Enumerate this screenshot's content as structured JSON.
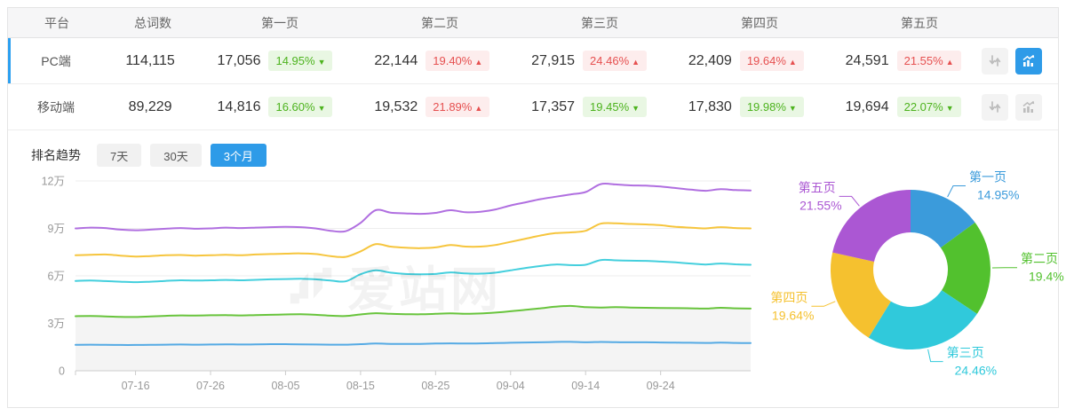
{
  "table": {
    "headers": {
      "platform": "平台",
      "total": "总词数",
      "pages": [
        "第一页",
        "第二页",
        "第三页",
        "第四页",
        "第五页"
      ]
    },
    "rows": [
      {
        "platform": "PC端",
        "total": "114,115",
        "selected": true,
        "chart_active": true,
        "pages": [
          {
            "count": "17,056",
            "pct": "14.95%",
            "trend": "down"
          },
          {
            "count": "22,144",
            "pct": "19.40%",
            "trend": "up"
          },
          {
            "count": "27,915",
            "pct": "24.46%",
            "trend": "up"
          },
          {
            "count": "22,409",
            "pct": "19.64%",
            "trend": "up"
          },
          {
            "count": "24,591",
            "pct": "21.55%",
            "trend": "up"
          }
        ]
      },
      {
        "platform": "移动端",
        "total": "89,229",
        "selected": false,
        "chart_active": false,
        "pages": [
          {
            "count": "14,816",
            "pct": "16.60%",
            "trend": "down"
          },
          {
            "count": "19,532",
            "pct": "21.89%",
            "trend": "up"
          },
          {
            "count": "17,357",
            "pct": "19.45%",
            "trend": "down"
          },
          {
            "count": "17,830",
            "pct": "19.98%",
            "trend": "down"
          },
          {
            "count": "19,694",
            "pct": "22.07%",
            "trend": "down"
          }
        ]
      }
    ]
  },
  "trend_section": {
    "title": "排名趋势",
    "tabs": [
      {
        "label": "7天",
        "active": false
      },
      {
        "label": "30天",
        "active": false
      },
      {
        "label": "3个月",
        "active": true
      }
    ]
  },
  "watermark": "爱站网",
  "colors": {
    "accent_blue": "#2e9be8",
    "row_accent": "#2b9ff0",
    "badge_up_red": "#e65050",
    "badge_down_green": "#4db31e"
  },
  "chart_data": [
    {
      "type": "line",
      "title": "排名趋势（3个月）",
      "unit": "万",
      "ylim": [
        0,
        12
      ],
      "grid": true,
      "legend": "none",
      "y_ticks": [
        {
          "v": 0,
          "label": "0"
        },
        {
          "v": 3,
          "label": "3万"
        },
        {
          "v": 6,
          "label": "6万"
        },
        {
          "v": 9,
          "label": "9万"
        },
        {
          "v": 12,
          "label": "12万"
        }
      ],
      "x_step_days": 2,
      "x_max_day": 90,
      "x_ticks": [
        {
          "day": 8,
          "label": "07-16"
        },
        {
          "day": 18,
          "label": "07-26"
        },
        {
          "day": 28,
          "label": "08-05"
        },
        {
          "day": 38,
          "label": "08-15"
        },
        {
          "day": 48,
          "label": "08-25"
        },
        {
          "day": 58,
          "label": "09-04"
        },
        {
          "day": 68,
          "label": "09-14"
        },
        {
          "day": 78,
          "label": "09-24"
        }
      ],
      "series": [
        {
          "name": "blue-line",
          "color": "#55aae4",
          "area": null,
          "values": [
            1.64,
            1.65,
            1.64,
            1.63,
            1.63,
            1.64,
            1.65,
            1.66,
            1.65,
            1.66,
            1.67,
            1.66,
            1.67,
            1.68,
            1.68,
            1.67,
            1.66,
            1.65,
            1.65,
            1.68,
            1.72,
            1.7,
            1.7,
            1.7,
            1.72,
            1.73,
            1.72,
            1.73,
            1.75,
            1.77,
            1.79,
            1.8,
            1.82,
            1.83,
            1.8,
            1.82,
            1.81,
            1.8,
            1.8,
            1.79,
            1.78,
            1.77,
            1.76,
            1.78,
            1.76,
            1.75
          ]
        },
        {
          "name": "green-line",
          "color": "#68c43c",
          "area": "#f4f4f4",
          "values": [
            3.45,
            3.46,
            3.44,
            3.41,
            3.4,
            3.43,
            3.47,
            3.5,
            3.49,
            3.51,
            3.52,
            3.5,
            3.52,
            3.54,
            3.56,
            3.57,
            3.54,
            3.48,
            3.46,
            3.56,
            3.64,
            3.6,
            3.58,
            3.57,
            3.6,
            3.63,
            3.6,
            3.62,
            3.68,
            3.76,
            3.85,
            3.95,
            4.05,
            4.1,
            4.02,
            4.0,
            4.02,
            4.0,
            3.98,
            3.97,
            3.96,
            3.95,
            3.93,
            3.98,
            3.95,
            3.93
          ]
        },
        {
          "name": "cyan-line",
          "color": "#44cfdd",
          "area": null,
          "values": [
            5.68,
            5.7,
            5.67,
            5.63,
            5.6,
            5.63,
            5.68,
            5.72,
            5.7,
            5.72,
            5.74,
            5.72,
            5.75,
            5.78,
            5.8,
            5.82,
            5.78,
            5.7,
            5.65,
            6.1,
            6.35,
            6.2,
            6.12,
            6.1,
            6.12,
            6.22,
            6.15,
            6.14,
            6.2,
            6.35,
            6.5,
            6.62,
            6.72,
            6.68,
            6.7,
            7.0,
            6.98,
            6.96,
            6.95,
            6.9,
            6.85,
            6.78,
            6.72,
            6.78,
            6.73,
            6.7
          ]
        },
        {
          "name": "yellow-line",
          "color": "#f6c53d",
          "area": null,
          "values": [
            7.3,
            7.33,
            7.35,
            7.28,
            7.22,
            7.25,
            7.3,
            7.32,
            7.28,
            7.3,
            7.33,
            7.3,
            7.35,
            7.38,
            7.4,
            7.42,
            7.38,
            7.25,
            7.2,
            7.55,
            8.0,
            7.85,
            7.78,
            7.75,
            7.8,
            7.95,
            7.85,
            7.85,
            7.95,
            8.15,
            8.35,
            8.55,
            8.7,
            8.75,
            8.85,
            9.3,
            9.32,
            9.28,
            9.25,
            9.2,
            9.1,
            9.05,
            9.0,
            9.08,
            9.02,
            9.0
          ]
        },
        {
          "name": "purple-line",
          "color": "#b06fe0",
          "area": null,
          "values": [
            9.0,
            9.05,
            9.02,
            8.92,
            8.88,
            8.92,
            8.98,
            9.02,
            8.98,
            9.0,
            9.05,
            9.02,
            9.05,
            9.08,
            9.1,
            9.08,
            9.0,
            8.85,
            8.82,
            9.35,
            10.15,
            10.0,
            9.95,
            9.92,
            9.98,
            10.15,
            10.02,
            10.05,
            10.2,
            10.45,
            10.65,
            10.85,
            11.0,
            11.15,
            11.3,
            11.8,
            11.78,
            11.72,
            11.7,
            11.65,
            11.55,
            11.45,
            11.38,
            11.48,
            11.42,
            11.4
          ]
        }
      ]
    },
    {
      "type": "pie",
      "donut": true,
      "start_angle_deg": 0,
      "clockwise": true,
      "slices": [
        {
          "label": "第一页",
          "value": 14.95,
          "pct_label": "14.95%",
          "color": "#3b9bdb"
        },
        {
          "label": "第二页",
          "value": 19.4,
          "pct_label": "19.4%",
          "color": "#52c12e"
        },
        {
          "label": "第三页",
          "value": 24.46,
          "pct_label": "24.46%",
          "color": "#30c9db"
        },
        {
          "label": "第四页",
          "value": 19.64,
          "pct_label": "19.64%",
          "color": "#f5c12f"
        },
        {
          "label": "第五页",
          "value": 21.55,
          "pct_label": "21.55%",
          "color": "#ab57d3"
        }
      ]
    }
  ]
}
